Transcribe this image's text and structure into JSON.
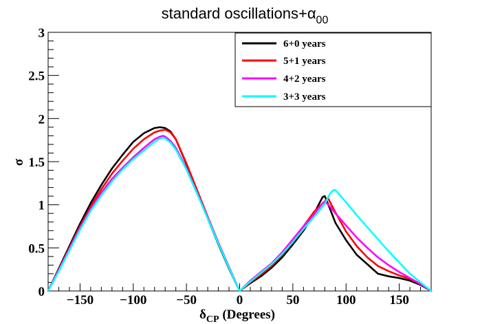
{
  "chart_data": {
    "type": "line",
    "title": "standard oscillations+",
    "title_greek": "α",
    "title_sub": "00",
    "xlabel_greek": "δ",
    "xlabel_sub": "CP",
    "xlabel_rest": " (Degrees)",
    "ylabel": "σ",
    "xlim": [
      -180,
      180
    ],
    "ylim": [
      0,
      3
    ],
    "x_ticks": [
      -150,
      -100,
      -50,
      0,
      50,
      100,
      150
    ],
    "x_tick_labels": [
      "−150",
      "−100",
      "−50",
      "0",
      "50",
      "100",
      "150"
    ],
    "y_ticks": [
      0,
      0.5,
      1,
      1.5,
      2,
      2.5,
      3
    ],
    "y_tick_labels": [
      "0",
      "0.5",
      "1",
      "1.5",
      "2",
      "2.5",
      "3"
    ],
    "legend_position": "top-right",
    "series": [
      {
        "name": "6+0 years",
        "color": "#000000",
        "x": [
          -180,
          -170,
          -160,
          -150,
          -140,
          -130,
          -120,
          -110,
          -100,
          -90,
          -80,
          -75,
          -70,
          -65,
          -60,
          -50,
          -40,
          -30,
          -20,
          -10,
          0,
          10,
          20,
          30,
          40,
          50,
          60,
          70,
          78,
          80,
          85,
          90,
          100,
          110,
          120,
          130,
          140,
          150,
          160,
          170,
          180
        ],
        "y": [
          0,
          0.26,
          0.52,
          0.78,
          1.02,
          1.23,
          1.42,
          1.58,
          1.73,
          1.83,
          1.89,
          1.9,
          1.89,
          1.85,
          1.76,
          1.47,
          1.16,
          0.84,
          0.54,
          0.26,
          0,
          0.09,
          0.17,
          0.27,
          0.39,
          0.54,
          0.7,
          0.9,
          1.09,
          1.1,
          0.95,
          0.79,
          0.59,
          0.42,
          0.31,
          0.2,
          0.17,
          0.15,
          0.12,
          0.07,
          0
        ]
      },
      {
        "name": "5+1 years",
        "color": "#ff0000",
        "x": [
          -180,
          -170,
          -160,
          -150,
          -140,
          -130,
          -120,
          -110,
          -100,
          -90,
          -80,
          -75,
          -70,
          -65,
          -60,
          -50,
          -40,
          -30,
          -20,
          -10,
          0,
          10,
          20,
          30,
          40,
          50,
          60,
          70,
          80,
          83,
          85,
          90,
          100,
          110,
          120,
          130,
          140,
          150,
          160,
          170,
          180
        ],
        "y": [
          0,
          0.25,
          0.5,
          0.75,
          0.98,
          1.18,
          1.36,
          1.51,
          1.65,
          1.76,
          1.84,
          1.86,
          1.87,
          1.84,
          1.76,
          1.48,
          1.17,
          0.86,
          0.56,
          0.27,
          0,
          0.1,
          0.19,
          0.29,
          0.42,
          0.58,
          0.75,
          0.92,
          1.04,
          1.08,
          1.03,
          0.91,
          0.69,
          0.52,
          0.39,
          0.29,
          0.23,
          0.18,
          0.14,
          0.08,
          0
        ]
      },
      {
        "name": "4+2 years",
        "color": "#ff00ff",
        "x": [
          -180,
          -170,
          -160,
          -150,
          -140,
          -130,
          -120,
          -110,
          -100,
          -90,
          -80,
          -75,
          -72,
          -70,
          -65,
          -60,
          -50,
          -40,
          -30,
          -20,
          -10,
          0,
          10,
          20,
          30,
          40,
          50,
          60,
          70,
          78,
          80,
          85,
          90,
          100,
          110,
          120,
          130,
          140,
          150,
          160,
          170,
          180
        ],
        "y": [
          0,
          0.24,
          0.49,
          0.73,
          0.95,
          1.14,
          1.3,
          1.43,
          1.55,
          1.66,
          1.76,
          1.79,
          1.8,
          1.79,
          1.74,
          1.66,
          1.42,
          1.14,
          0.85,
          0.56,
          0.28,
          0,
          0.12,
          0.22,
          0.32,
          0.45,
          0.6,
          0.75,
          0.89,
          1.02,
          1.04,
          0.98,
          0.9,
          0.76,
          0.62,
          0.5,
          0.39,
          0.3,
          0.22,
          0.15,
          0.08,
          0
        ]
      },
      {
        "name": "3+3 years",
        "color": "#00ffff",
        "x": [
          -180,
          -170,
          -160,
          -150,
          -140,
          -130,
          -120,
          -110,
          -100,
          -90,
          -80,
          -75,
          -72,
          -70,
          -65,
          -60,
          -50,
          -40,
          -30,
          -20,
          -10,
          0,
          10,
          20,
          30,
          40,
          50,
          60,
          70,
          80,
          85,
          88,
          90,
          100,
          110,
          120,
          130,
          140,
          150,
          160,
          170,
          180
        ],
        "y": [
          0,
          0.23,
          0.47,
          0.71,
          0.93,
          1.11,
          1.27,
          1.41,
          1.53,
          1.63,
          1.73,
          1.77,
          1.78,
          1.77,
          1.72,
          1.64,
          1.41,
          1.13,
          0.84,
          0.55,
          0.27,
          0,
          0.11,
          0.21,
          0.31,
          0.43,
          0.57,
          0.72,
          0.86,
          1.01,
          1.13,
          1.17,
          1.17,
          1.03,
          0.88,
          0.74,
          0.6,
          0.46,
          0.33,
          0.2,
          0.1,
          0
        ]
      }
    ]
  }
}
